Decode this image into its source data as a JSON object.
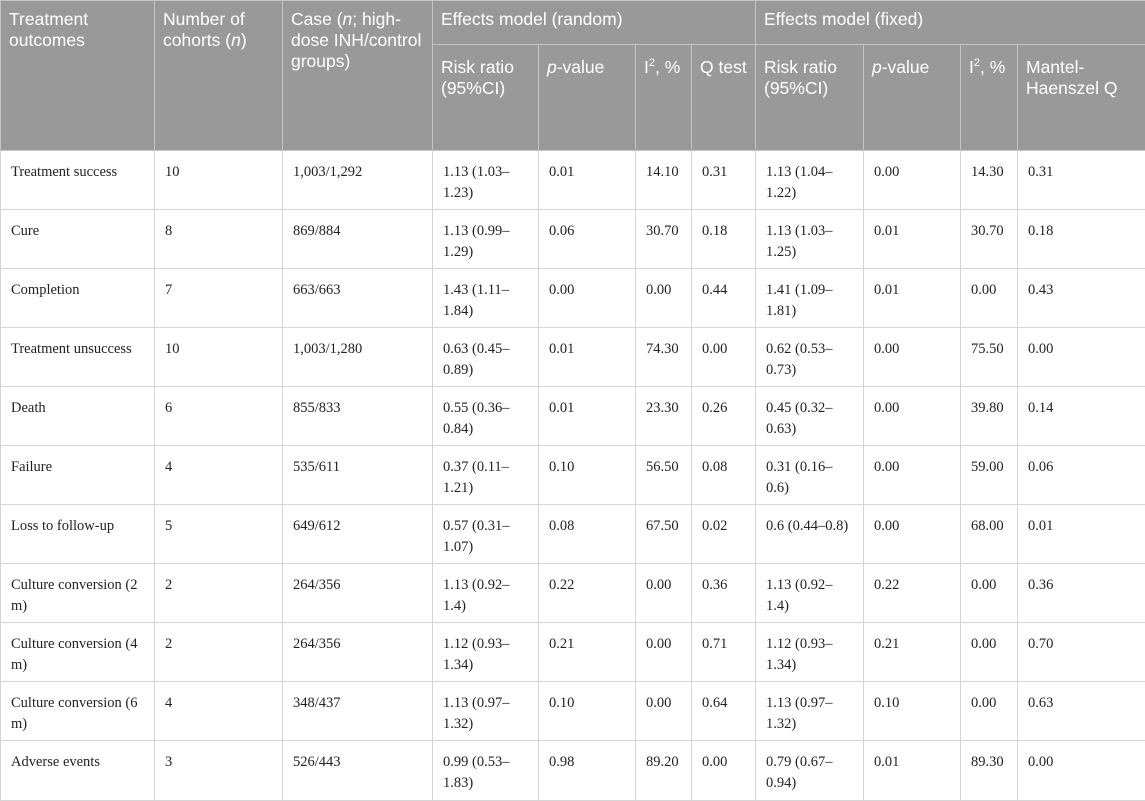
{
  "header": {
    "treatment_outcomes": "Treatment outcomes",
    "number_of_cohorts": {
      "pre": "Number of cohorts (",
      "italic": "n",
      "post": ")"
    },
    "case": {
      "pre": "Case (",
      "italic": "n",
      "post": "; high-dose INH/control groups)"
    },
    "effects_random": "Effects model (random)",
    "effects_fixed": "Effects model (fixed)",
    "risk_ratio": "Risk ratio (95%CI)",
    "p_value": {
      "italic": "p",
      "post": "-value"
    },
    "i2": {
      "base": "I",
      "sup": "2",
      "post": ", %"
    },
    "q_test": "Q test",
    "mantel_haenszel": "Mantel-Haenszel Q"
  },
  "rows": [
    {
      "outcome": "Treatment success",
      "cohorts": "10",
      "case": "1,003/1,292",
      "rr_random": "1.13 (1.03–1.23)",
      "p_random": "0.01",
      "i2_random": "14.10",
      "q_test": "0.31",
      "rr_fixed": "1.13 (1.04–1.22)",
      "p_fixed": "0.00",
      "i2_fixed": "14.30",
      "mh_q": "0.31"
    },
    {
      "outcome": "Cure",
      "cohorts": "8",
      "case": "869/884",
      "rr_random": "1.13 (0.99–1.29)",
      "p_random": "0.06",
      "i2_random": "30.70",
      "q_test": "0.18",
      "rr_fixed": "1.13 (1.03–1.25)",
      "p_fixed": "0.01",
      "i2_fixed": "30.70",
      "mh_q": "0.18"
    },
    {
      "outcome": "Completion",
      "cohorts": "7",
      "case": "663/663",
      "rr_random": "1.43 (1.11–1.84)",
      "p_random": "0.00",
      "i2_random": "0.00",
      "q_test": "0.44",
      "rr_fixed": "1.41 (1.09–1.81)",
      "p_fixed": "0.01",
      "i2_fixed": "0.00",
      "mh_q": "0.43"
    },
    {
      "outcome": "Treatment unsuccess",
      "cohorts": "10",
      "case": "1,003/1,280",
      "rr_random": "0.63 (0.45–0.89)",
      "p_random": "0.01",
      "i2_random": "74.30",
      "q_test": "0.00",
      "rr_fixed": "0.62 (0.53–0.73)",
      "p_fixed": "0.00",
      "i2_fixed": "75.50",
      "mh_q": "0.00"
    },
    {
      "outcome": "Death",
      "cohorts": "6",
      "case": "855/833",
      "rr_random": "0.55 (0.36–0.84)",
      "p_random": "0.01",
      "i2_random": "23.30",
      "q_test": "0.26",
      "rr_fixed": "0.45 (0.32–0.63)",
      "p_fixed": "0.00",
      "i2_fixed": "39.80",
      "mh_q": "0.14"
    },
    {
      "outcome": "Failure",
      "cohorts": "4",
      "case": "535/611",
      "rr_random": "0.37 (0.11–1.21)",
      "p_random": "0.10",
      "i2_random": "56.50",
      "q_test": "0.08",
      "rr_fixed": "0.31 (0.16–0.6)",
      "p_fixed": "0.00",
      "i2_fixed": "59.00",
      "mh_q": "0.06"
    },
    {
      "outcome": "Loss to follow-up",
      "cohorts": "5",
      "case": "649/612",
      "rr_random": "0.57 (0.31–1.07)",
      "p_random": "0.08",
      "i2_random": "67.50",
      "q_test": "0.02",
      "rr_fixed": "0.6 (0.44–0.8)",
      "p_fixed": "0.00",
      "i2_fixed": "68.00",
      "mh_q": "0.01"
    },
    {
      "outcome": "Culture conversion (2 m)",
      "cohorts": "2",
      "case": "264/356",
      "rr_random": "1.13 (0.92–1.4)",
      "p_random": "0.22",
      "i2_random": "0.00",
      "q_test": "0.36",
      "rr_fixed": "1.13 (0.92–1.4)",
      "p_fixed": "0.22",
      "i2_fixed": "0.00",
      "mh_q": "0.36"
    },
    {
      "outcome": "Culture conversion (4 m)",
      "cohorts": "2",
      "case": "264/356",
      "rr_random": "1.12 (0.93–1.34)",
      "p_random": "0.21",
      "i2_random": "0.00",
      "q_test": "0.71",
      "rr_fixed": "1.12 (0.93–1.34)",
      "p_fixed": "0.21",
      "i2_fixed": "0.00",
      "mh_q": "0.70"
    },
    {
      "outcome": "Culture conversion (6 m)",
      "cohorts": "4",
      "case": "348/437",
      "rr_random": "1.13 (0.97–1.32)",
      "p_random": "0.10",
      "i2_random": "0.00",
      "q_test": "0.64",
      "rr_fixed": "1.13 (0.97–1.32)",
      "p_fixed": "0.10",
      "i2_fixed": "0.00",
      "mh_q": "0.63"
    },
    {
      "outcome": "Adverse events",
      "cohorts": "3",
      "case": "526/443",
      "rr_random": "0.99 (0.53–1.83)",
      "p_random": "0.98",
      "i2_random": "89.20",
      "q_test": "0.00",
      "rr_fixed": "0.79 (0.67–0.94)",
      "p_fixed": "0.01",
      "i2_fixed": "89.30",
      "mh_q": "0.00"
    }
  ]
}
